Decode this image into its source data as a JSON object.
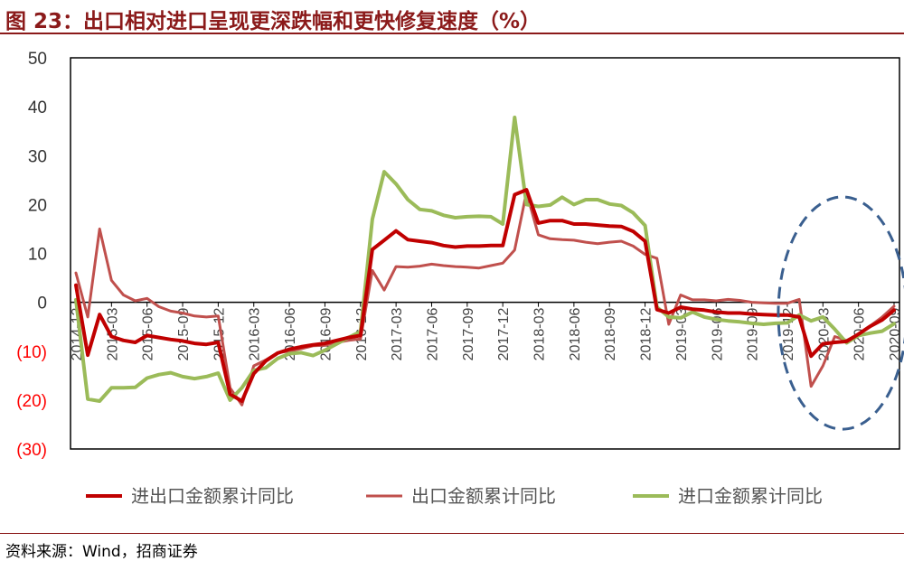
{
  "header": {
    "title": "图 23：出口相对进口呈现更深跌幅和更快修复速度（%）"
  },
  "footer": {
    "source": "资料来源：Wind，招商证券"
  },
  "chart_data": {
    "type": "line",
    "title": "图 23：出口相对进口呈现更深跌幅和更快修复速度（%）",
    "xlabel": "",
    "ylabel": "",
    "ylim": [
      -30,
      50
    ],
    "grid": false,
    "legend_position": "bottom",
    "y_ticks": [
      {
        "value": 50,
        "label": "50"
      },
      {
        "value": 40,
        "label": "40"
      },
      {
        "value": 30,
        "label": "30"
      },
      {
        "value": 20,
        "label": "20"
      },
      {
        "value": 10,
        "label": "10"
      },
      {
        "value": 0,
        "label": "0"
      },
      {
        "value": -10,
        "label": "(10)"
      },
      {
        "value": -20,
        "label": "(20)"
      },
      {
        "value": -30,
        "label": "(30)"
      }
    ],
    "negative_label_color": "#FF0000",
    "x": [
      "2014-12",
      "2015-01",
      "2015-02",
      "2015-03",
      "2015-04",
      "2015-05",
      "2015-06",
      "2015-07",
      "2015-08",
      "2015-09",
      "2015-10",
      "2015-11",
      "2015-12",
      "2016-01",
      "2016-02",
      "2016-03",
      "2016-04",
      "2016-05",
      "2016-06",
      "2016-07",
      "2016-08",
      "2016-09",
      "2016-10",
      "2016-11",
      "2016-12",
      "2017-01",
      "2017-02",
      "2017-03",
      "2017-04",
      "2017-05",
      "2017-06",
      "2017-07",
      "2017-08",
      "2017-09",
      "2017-10",
      "2017-11",
      "2017-12",
      "2018-01",
      "2018-02",
      "2018-03",
      "2018-04",
      "2018-05",
      "2018-06",
      "2018-07",
      "2018-08",
      "2018-09",
      "2018-10",
      "2018-11",
      "2018-12",
      "2019-01",
      "2019-02",
      "2019-03",
      "2019-04",
      "2019-05",
      "2019-06",
      "2019-07",
      "2019-08",
      "2019-09",
      "2019-10",
      "2019-11",
      "2019-12",
      "2020-01",
      "2020-02",
      "2020-03",
      "2020-04",
      "2020-05",
      "2020-06",
      "2020-07",
      "2020-08",
      "2020-09"
    ],
    "x_tick_labels": [
      "2014-12",
      "2015-03",
      "2015-06",
      "2015-09",
      "2015-12",
      "2016-03",
      "2016-06",
      "2016-09",
      "2016-12",
      "2017-03",
      "2017-06",
      "2017-09",
      "2017-12",
      "2018-03",
      "2018-06",
      "2018-09",
      "2018-12",
      "2019-03",
      "2019-06",
      "2019-09",
      "2019-12",
      "2020-03",
      "2020-06",
      "2020-09"
    ],
    "series": [
      {
        "name": "进出口金额累计同比",
        "color": "#C00000",
        "width": 4,
        "values": [
          3.5,
          -10.8,
          -2.5,
          -7.0,
          -7.8,
          -8.2,
          -6.8,
          -7.2,
          -7.6,
          -7.9,
          -8.4,
          -8.6,
          -8.2,
          -18.8,
          -20.2,
          -14.6,
          -12.0,
          -10.4,
          -9.6,
          -9.1,
          -8.7,
          -8.4,
          -7.8,
          -7.2,
          -6.8,
          10.8,
          12.7,
          14.6,
          12.8,
          12.5,
          12.2,
          11.6,
          11.3,
          11.5,
          11.5,
          11.6,
          11.6,
          22.0,
          23.0,
          16.2,
          16.7,
          16.7,
          16.0,
          16.0,
          15.8,
          15.6,
          15.5,
          14.5,
          12.5,
          -1.5,
          -2.2,
          -1.0,
          -1.4,
          -1.6,
          -2.0,
          -2.2,
          -2.2,
          -2.4,
          -2.5,
          -2.6,
          -2.6,
          -3.0,
          -11.0,
          -8.5,
          -8.2,
          -8.0,
          -6.5,
          -4.9,
          -3.6,
          -1.6
        ]
      },
      {
        "name": "出口金额累计同比",
        "color": "#C0504D",
        "width": 3,
        "values": [
          6.0,
          -3.0,
          15.0,
          4.5,
          1.5,
          0.3,
          0.8,
          -0.9,
          -1.8,
          -2.2,
          -2.8,
          -3.0,
          -2.8,
          -17.5,
          -21.0,
          -13.0,
          -11.8,
          -10.3,
          -10.0,
          -9.5,
          -8.9,
          -8.8,
          -8.2,
          -7.8,
          -7.5,
          6.5,
          2.5,
          7.3,
          7.2,
          7.4,
          7.8,
          7.5,
          7.3,
          7.2,
          7.0,
          7.5,
          8.0,
          10.7,
          22.5,
          13.8,
          13.0,
          12.8,
          12.7,
          12.3,
          12.0,
          12.3,
          12.5,
          11.5,
          9.8,
          9.0,
          -4.5,
          1.5,
          0.5,
          0.5,
          0.3,
          0.6,
          0.4,
          0.0,
          -0.1,
          -0.2,
          -0.2,
          0.6,
          -17.2,
          -13.0,
          -7.0,
          -7.8,
          -6.5,
          -4.8,
          -3.0,
          -0.8
        ]
      },
      {
        "name": "进口金额累计同比",
        "color": "#9BBB59",
        "width": 4,
        "values": [
          0.5,
          -19.8,
          -20.2,
          -17.5,
          -17.5,
          -17.4,
          -15.5,
          -14.8,
          -14.4,
          -15.2,
          -15.6,
          -15.2,
          -14.5,
          -20.0,
          -17.5,
          -13.9,
          -13.4,
          -11.5,
          -10.5,
          -10.3,
          -10.9,
          -9.8,
          -8.5,
          -7.2,
          -6.0,
          17.0,
          26.7,
          24.2,
          21.0,
          19.0,
          18.7,
          17.8,
          17.3,
          17.5,
          17.6,
          17.5,
          16.0,
          37.8,
          20.0,
          19.6,
          19.9,
          21.5,
          20.0,
          21.0,
          21.0,
          20.1,
          19.8,
          18.3,
          15.7,
          -1.0,
          -3.0,
          -3.2,
          -2.0,
          -3.0,
          -3.5,
          -3.8,
          -4.0,
          -4.3,
          -4.5,
          -4.3,
          -4.2,
          -2.6,
          -3.8,
          -3.0,
          -5.5,
          -8.3,
          -6.8,
          -6.3,
          -5.9,
          -4.4
        ]
      }
    ],
    "annotation": {
      "type": "dashed-ellipse",
      "color": "#3A5F8F",
      "start": "2019-12",
      "end": "2020-09"
    }
  }
}
